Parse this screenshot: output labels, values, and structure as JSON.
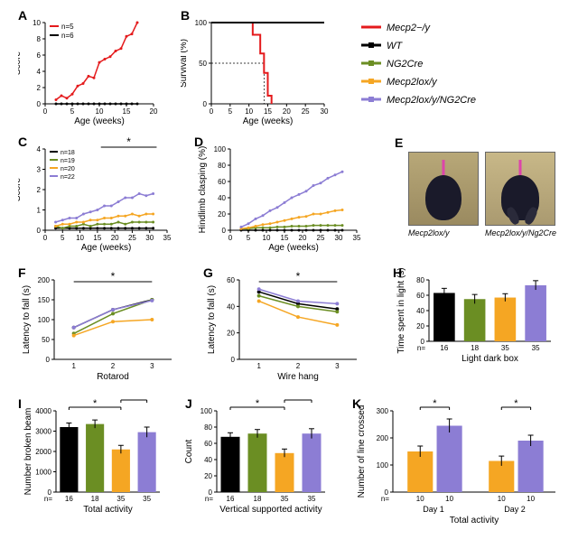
{
  "colors": {
    "red": "#e41a1c",
    "black": "#000000",
    "olive": "#6b8e23",
    "orange": "#f5a623",
    "purple": "#8c7dd4",
    "white": "#ffffff",
    "gray": "#cccccc"
  },
  "legend": {
    "items": [
      {
        "label": "Mecp2−/y",
        "color": "#e41a1c"
      },
      {
        "label": "WT",
        "color": "#000000"
      },
      {
        "label": "NG2Cre",
        "color": "#6b8e23"
      },
      {
        "label": "Mecp2lox/y",
        "color": "#f5a623"
      },
      {
        "label": "Mecp2lox/y/NG2Cre",
        "color": "#8c7dd4"
      }
    ]
  },
  "panelA": {
    "label": "A",
    "type": "line",
    "ylabel": "Score",
    "xlabel": "Age (weeks)",
    "xlim": [
      0,
      20
    ],
    "xtick_step": 5,
    "ylim": [
      0,
      10
    ],
    "ytick_step": 2,
    "series": [
      {
        "color": "#e41a1c",
        "n": "n=5",
        "points": [
          [
            2,
            0.5
          ],
          [
            3,
            1
          ],
          [
            4,
            0.7
          ],
          [
            5,
            1.2
          ],
          [
            6,
            2.2
          ],
          [
            7,
            2.5
          ],
          [
            8,
            3.4
          ],
          [
            9,
            3.2
          ],
          [
            10,
            5.1
          ],
          [
            11,
            5.5
          ],
          [
            12,
            5.8
          ],
          [
            13,
            6.5
          ],
          [
            14,
            6.8
          ],
          [
            15,
            8.3
          ],
          [
            16,
            8.6
          ],
          [
            17,
            10
          ]
        ]
      },
      {
        "color": "#000000",
        "n": "n=6",
        "points": [
          [
            2,
            0
          ],
          [
            3,
            0
          ],
          [
            4,
            0
          ],
          [
            5,
            0
          ],
          [
            6,
            0
          ],
          [
            7,
            0
          ],
          [
            8,
            0
          ],
          [
            9,
            0
          ],
          [
            10,
            0
          ],
          [
            11,
            0
          ],
          [
            12,
            0
          ],
          [
            13,
            0
          ],
          [
            14,
            0
          ],
          [
            15,
            0
          ],
          [
            16,
            0
          ],
          [
            17,
            0
          ]
        ]
      }
    ]
  },
  "panelB": {
    "label": "B",
    "type": "survival",
    "ylabel": "Survival (%)",
    "xlabel": "Age (weeks)",
    "xlim": [
      0,
      30
    ],
    "xtick_step": 5,
    "ylim": [
      0,
      100
    ],
    "ytick_step": 50,
    "dashed_x": 14,
    "dashed_y": 50,
    "series": [
      {
        "color": "#e41a1c",
        "points": [
          [
            0,
            100
          ],
          [
            11,
            100
          ],
          [
            11,
            85
          ],
          [
            13,
            85
          ],
          [
            13,
            62
          ],
          [
            14,
            62
          ],
          [
            14,
            38
          ],
          [
            15,
            38
          ],
          [
            15,
            10
          ],
          [
            16,
            10
          ],
          [
            16,
            0
          ]
        ]
      },
      {
        "color": "#000000",
        "points": [
          [
            0,
            100
          ],
          [
            30,
            100
          ]
        ]
      }
    ]
  },
  "panelC": {
    "label": "C",
    "type": "line",
    "ylabel": "Score",
    "xlabel": "Age (weeks)",
    "xlim": [
      0,
      35
    ],
    "xtick_step": 5,
    "ylim": [
      0,
      4
    ],
    "ytick_step": 1,
    "n_labels": [
      "n=18",
      "n=19",
      "n=20",
      "n=22"
    ],
    "n_colors": [
      "#000000",
      "#6b8e23",
      "#f5a623",
      "#8c7dd4"
    ],
    "sig_range": [
      16,
      32
    ],
    "series": [
      {
        "color": "#000000",
        "points": [
          [
            3,
            0.1
          ],
          [
            5,
            0.1
          ],
          [
            7,
            0.1
          ],
          [
            9,
            0.1
          ],
          [
            11,
            0.1
          ],
          [
            13,
            0.1
          ],
          [
            15,
            0.1
          ],
          [
            17,
            0.1
          ],
          [
            19,
            0.1
          ],
          [
            21,
            0.1
          ],
          [
            23,
            0.1
          ],
          [
            25,
            0.1
          ],
          [
            27,
            0.1
          ],
          [
            29,
            0.1
          ],
          [
            31,
            0.1
          ]
        ]
      },
      {
        "color": "#6b8e23",
        "points": [
          [
            3,
            0.2
          ],
          [
            5,
            0.1
          ],
          [
            7,
            0.2
          ],
          [
            9,
            0.2
          ],
          [
            11,
            0.3
          ],
          [
            13,
            0.2
          ],
          [
            15,
            0.3
          ],
          [
            17,
            0.3
          ],
          [
            19,
            0.3
          ],
          [
            21,
            0.4
          ],
          [
            23,
            0.3
          ],
          [
            25,
            0.4
          ],
          [
            27,
            0.4
          ],
          [
            29,
            0.4
          ],
          [
            31,
            0.4
          ]
        ]
      },
      {
        "color": "#f5a623",
        "points": [
          [
            3,
            0.2
          ],
          [
            5,
            0.3
          ],
          [
            7,
            0.3
          ],
          [
            9,
            0.4
          ],
          [
            11,
            0.4
          ],
          [
            13,
            0.5
          ],
          [
            15,
            0.5
          ],
          [
            17,
            0.6
          ],
          [
            19,
            0.6
          ],
          [
            21,
            0.7
          ],
          [
            23,
            0.7
          ],
          [
            25,
            0.8
          ],
          [
            27,
            0.7
          ],
          [
            29,
            0.8
          ],
          [
            31,
            0.8
          ]
        ]
      },
      {
        "color": "#8c7dd4",
        "points": [
          [
            3,
            0.4
          ],
          [
            5,
            0.5
          ],
          [
            7,
            0.6
          ],
          [
            9,
            0.6
          ],
          [
            11,
            0.8
          ],
          [
            13,
            0.9
          ],
          [
            15,
            1.0
          ],
          [
            17,
            1.2
          ],
          [
            19,
            1.2
          ],
          [
            21,
            1.4
          ],
          [
            23,
            1.6
          ],
          [
            25,
            1.6
          ],
          [
            27,
            1.8
          ],
          [
            29,
            1.7
          ],
          [
            31,
            1.8
          ]
        ]
      }
    ]
  },
  "panelD": {
    "label": "D",
    "type": "line",
    "ylabel": "Hindlimb clasping (%)",
    "xlabel": "Age (weeks)",
    "xlim": [
      0,
      35
    ],
    "xtick_step": 5,
    "ylim": [
      0,
      100
    ],
    "ytick_step": 20,
    "series": [
      {
        "color": "#000000",
        "points": [
          [
            3,
            0
          ],
          [
            5,
            0
          ],
          [
            7,
            0
          ],
          [
            9,
            0
          ],
          [
            11,
            0
          ],
          [
            13,
            0
          ],
          [
            15,
            0
          ],
          [
            17,
            0
          ],
          [
            19,
            0
          ],
          [
            21,
            0
          ],
          [
            23,
            0
          ],
          [
            25,
            0
          ],
          [
            27,
            0
          ],
          [
            29,
            0
          ],
          [
            31,
            0
          ]
        ]
      },
      {
        "color": "#6b8e23",
        "points": [
          [
            3,
            2
          ],
          [
            5,
            2
          ],
          [
            7,
            3
          ],
          [
            9,
            3
          ],
          [
            11,
            3
          ],
          [
            13,
            4
          ],
          [
            15,
            4
          ],
          [
            17,
            5
          ],
          [
            19,
            5
          ],
          [
            21,
            5
          ],
          [
            23,
            6
          ],
          [
            25,
            6
          ],
          [
            27,
            6
          ],
          [
            29,
            6
          ],
          [
            31,
            6
          ]
        ]
      },
      {
        "color": "#f5a623",
        "points": [
          [
            3,
            2
          ],
          [
            5,
            3
          ],
          [
            7,
            5
          ],
          [
            9,
            7
          ],
          [
            11,
            8
          ],
          [
            13,
            10
          ],
          [
            15,
            12
          ],
          [
            17,
            14
          ],
          [
            19,
            16
          ],
          [
            21,
            17
          ],
          [
            23,
            20
          ],
          [
            25,
            20
          ],
          [
            27,
            22
          ],
          [
            29,
            24
          ],
          [
            31,
            25
          ]
        ]
      },
      {
        "color": "#8c7dd4",
        "points": [
          [
            3,
            4
          ],
          [
            5,
            8
          ],
          [
            7,
            14
          ],
          [
            9,
            18
          ],
          [
            11,
            24
          ],
          [
            13,
            28
          ],
          [
            15,
            34
          ],
          [
            17,
            40
          ],
          [
            19,
            44
          ],
          [
            21,
            48
          ],
          [
            23,
            55
          ],
          [
            25,
            58
          ],
          [
            27,
            64
          ],
          [
            29,
            68
          ],
          [
            31,
            72
          ]
        ]
      }
    ]
  },
  "panelE": {
    "label": "E",
    "type": "image",
    "captions": [
      "Mecp2lox/y",
      "Mecp2lox/y/Ng2Cre"
    ]
  },
  "panelF": {
    "label": "F",
    "type": "line",
    "ylabel": "Latency to fall (s)",
    "xlabel": "Rotarod",
    "categories": [
      "1",
      "2",
      "3"
    ],
    "ylim": [
      0,
      200
    ],
    "ytick_step": 50,
    "sig": true,
    "series": [
      {
        "color": "#000000",
        "points": [
          [
            1,
            80
          ],
          [
            2,
            125
          ],
          [
            3,
            150
          ]
        ]
      },
      {
        "color": "#6b8e23",
        "points": [
          [
            1,
            65
          ],
          [
            2,
            115
          ],
          [
            3,
            150
          ]
        ]
      },
      {
        "color": "#f5a623",
        "points": [
          [
            1,
            60
          ],
          [
            2,
            95
          ],
          [
            3,
            100
          ]
        ]
      },
      {
        "color": "#8c7dd4",
        "points": [
          [
            1,
            80
          ],
          [
            2,
            125
          ],
          [
            3,
            148
          ]
        ]
      }
    ]
  },
  "panelG": {
    "label": "G",
    "type": "line",
    "ylabel": "Latency to fall (s)",
    "xlabel": "Wire hang",
    "categories": [
      "1",
      "2",
      "3"
    ],
    "ylim": [
      0,
      60
    ],
    "ytick_step": 20,
    "sig": true,
    "series": [
      {
        "color": "#000000",
        "points": [
          [
            1,
            51
          ],
          [
            2,
            42
          ],
          [
            3,
            38
          ]
        ]
      },
      {
        "color": "#6b8e23",
        "points": [
          [
            1,
            48
          ],
          [
            2,
            40
          ],
          [
            3,
            36
          ]
        ]
      },
      {
        "color": "#f5a623",
        "points": [
          [
            1,
            44
          ],
          [
            2,
            32
          ],
          [
            3,
            26
          ]
        ]
      },
      {
        "color": "#8c7dd4",
        "points": [
          [
            1,
            53
          ],
          [
            2,
            44
          ],
          [
            3,
            42
          ]
        ]
      }
    ]
  },
  "panelH": {
    "label": "H",
    "type": "bar",
    "ylabel": "Time spent in light (s)",
    "xlabel": "Light dark box",
    "ylim": [
      0,
      80
    ],
    "ytick_step": 20,
    "bars": [
      {
        "color": "#000000",
        "value": 63,
        "err": 6,
        "n": "16"
      },
      {
        "color": "#6b8e23",
        "value": 55,
        "err": 6,
        "n": "18"
      },
      {
        "color": "#f5a623",
        "value": 57,
        "err": 5,
        "n": "35"
      },
      {
        "color": "#8c7dd4",
        "value": 73,
        "err": 6,
        "n": "35"
      }
    ]
  },
  "panelI": {
    "label": "I",
    "type": "bar",
    "ylabel": "Number broken beam",
    "xlabel": "Total activity",
    "ylim": [
      0,
      4000
    ],
    "ytick_step": 1000,
    "sig_pairs": [
      [
        0,
        2
      ],
      [
        2,
        3
      ]
    ],
    "bars": [
      {
        "color": "#000000",
        "value": 3200,
        "err": 200,
        "n": "16"
      },
      {
        "color": "#6b8e23",
        "value": 3350,
        "err": 200,
        "n": "18"
      },
      {
        "color": "#f5a623",
        "value": 2100,
        "err": 200,
        "n": "35"
      },
      {
        "color": "#8c7dd4",
        "value": 2950,
        "err": 250,
        "n": "35"
      }
    ]
  },
  "panelJ": {
    "label": "J",
    "type": "bar",
    "ylabel": "Count",
    "xlabel": "Vertical supported activity",
    "ylim": [
      0,
      100
    ],
    "ytick_step": 20,
    "sig_pairs": [
      [
        0,
        2
      ],
      [
        2,
        3
      ]
    ],
    "bars": [
      {
        "color": "#000000",
        "value": 68,
        "err": 5,
        "n": "16"
      },
      {
        "color": "#6b8e23",
        "value": 72,
        "err": 5,
        "n": "18"
      },
      {
        "color": "#f5a623",
        "value": 48,
        "err": 5,
        "n": "35"
      },
      {
        "color": "#8c7dd4",
        "value": 72,
        "err": 6,
        "n": "35"
      }
    ]
  },
  "panelK": {
    "label": "K",
    "type": "grouped-bar",
    "ylabel": "Number of line crossed",
    "xlabel": "Total activity",
    "ylim": [
      0,
      300
    ],
    "ytick_step": 100,
    "groups": [
      "Day 1",
      "Day 2"
    ],
    "sig": [
      true,
      true
    ],
    "bars": [
      {
        "group": 0,
        "color": "#f5a623",
        "value": 150,
        "err": 20,
        "n": "10"
      },
      {
        "group": 0,
        "color": "#8c7dd4",
        "value": 245,
        "err": 25,
        "n": "10"
      },
      {
        "group": 1,
        "color": "#f5a623",
        "value": 115,
        "err": 18,
        "n": "10"
      },
      {
        "group": 1,
        "color": "#8c7dd4",
        "value": 190,
        "err": 20,
        "n": "10"
      }
    ]
  }
}
